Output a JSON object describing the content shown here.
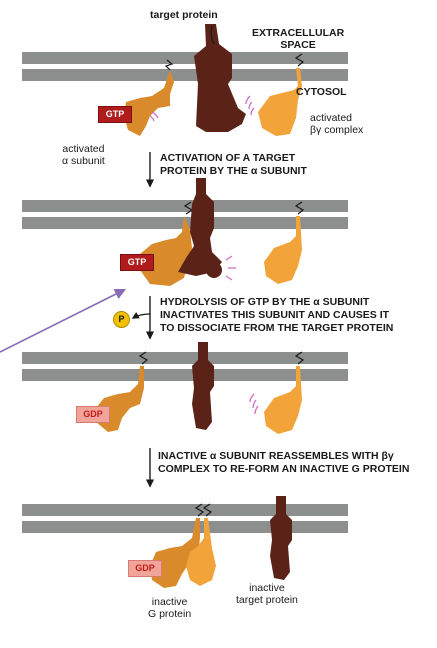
{
  "labels": {
    "target_protein": "target protein",
    "extracellular": "EXTRACELLULAR\nSPACE",
    "cytosol": "CYTOSOL",
    "activated_bg": "activated\nβγ complex",
    "activated_alpha": "activated\nα subunit",
    "inactive_g": "inactive\nG protein",
    "inactive_target": "inactive\ntarget protein"
  },
  "steps": {
    "step1": "ACTIVATION OF A TARGET\nPROTEIN BY THE α SUBUNIT",
    "step2": "HYDROLYSIS OF GTP BY THE α SUBUNIT\nINACTIVATES THIS SUBUNIT AND CAUSES IT\nTO DISSOCIATE FROM THE TARGET PROTEIN",
    "step3": "INACTIVE α SUBUNIT REASSEMBLES WITH βγ\nCOMPLEX TO RE-FORM AN INACTIVE G PROTEIN"
  },
  "badges": {
    "gtp": "GTP",
    "gdp": "GDP",
    "phosphate": "P"
  },
  "colors": {
    "membrane": "#8c8f8e",
    "alpha": "#d98a2b",
    "beta_gamma": "#f2a33a",
    "target": "#5b2318",
    "gtp": "#b01b1b",
    "gdp": "#f1a59a",
    "phosphate": "#f2c200",
    "annotation_arrow": "#8a6ab5",
    "glow": "#d06fc8"
  }
}
